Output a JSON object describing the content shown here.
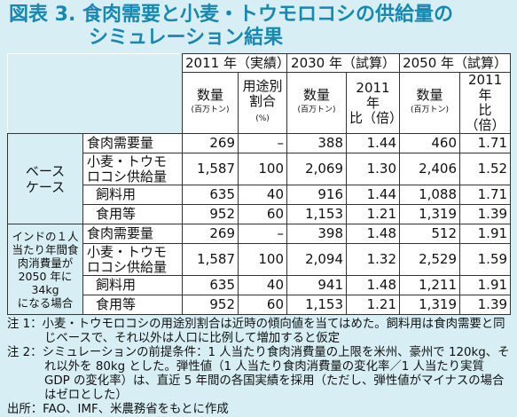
{
  "title": [
    "図表 3. 食肉需要と小麦・トウモロコシの供給量の",
    "シミュレーション結果"
  ],
  "table": {
    "year_headers": [
      "2011 年（実績）",
      "2030 年（試算）",
      "2050 年（試算）"
    ],
    "column_headers": [
      {
        "lines": [
          "数量"
        ],
        "unit": "(百万トン)"
      },
      {
        "lines": [
          "用途別",
          "割合"
        ],
        "unit": "(%)"
      },
      {
        "lines": [
          "数量"
        ],
        "unit": "(百万トン)"
      },
      {
        "lines": [
          "2011 年",
          "比（倍）"
        ]
      },
      {
        "lines": [
          "数量"
        ],
        "unit": "(百万トン)"
      },
      {
        "lines": [
          "2011 年",
          "比（倍）"
        ]
      }
    ],
    "groups": [
      {
        "label": [
          "ベース",
          "ケース"
        ],
        "rows": [
          {
            "label": [
              "食肉需要量"
            ],
            "cells": [
              "269",
              "–",
              "388",
              "1.44",
              "460",
              "1.71"
            ]
          },
          {
            "label": [
              "小麦・トウモ",
              "ロコシ供給量"
            ],
            "cells": [
              "1,587",
              "100",
              "2,069",
              "1.30",
              "2,406",
              "1.52"
            ]
          },
          {
            "label": [
              "飼料用"
            ],
            "cells": [
              "635",
              "40",
              "916",
              "1.44",
              "1,088",
              "1.71"
            ]
          },
          {
            "label": [
              "食用等"
            ],
            "cells": [
              "952",
              "60",
              "1,153",
              "1.21",
              "1,319",
              "1.39"
            ]
          }
        ]
      },
      {
        "label": [
          "インドの１人",
          "当たり年間食",
          "肉消費量が",
          "2050 年に 34kg",
          "になる場合"
        ],
        "rows": [
          {
            "label": [
              "食肉需要量"
            ],
            "cells": [
              "269",
              "–",
              "398",
              "1.48",
              "512",
              "1.91"
            ]
          },
          {
            "label": [
              "小麦・トウモ",
              "ロコシ供給量"
            ],
            "cells": [
              "1,587",
              "100",
              "2,094",
              "1.32",
              "2,529",
              "1.59"
            ]
          },
          {
            "label": [
              "飼料用"
            ],
            "cells": [
              "635",
              "40",
              "941",
              "1.48",
              "1,211",
              "1.91"
            ]
          },
          {
            "label": [
              "食用等"
            ],
            "cells": [
              "952",
              "60",
              "1,153",
              "1.21",
              "1,319",
              "1.39"
            ]
          }
        ]
      }
    ]
  },
  "notes": [
    "注 1：小麦・トウモロコシの用途別割合は近時の傾向値を当てはめた。飼料用は食肉需要と同じベースで、それ以外は人口に比例して増加すると仮定",
    "注 2：シミュレーションの前提条件：1 人当たり食肉消費量の上限を米州、豪州で 120kg、それ以外を 80kg とした。弾性値（1 人当たり食肉消費量の変化率／1 人当たり実質 GDP の変化率）は、直近 5 年間の各国実績を採用（ただし、弾性値がマイナスの場合はゼロとした）",
    "出所：FAO、IMF、米農務省をもとに作成"
  ]
}
